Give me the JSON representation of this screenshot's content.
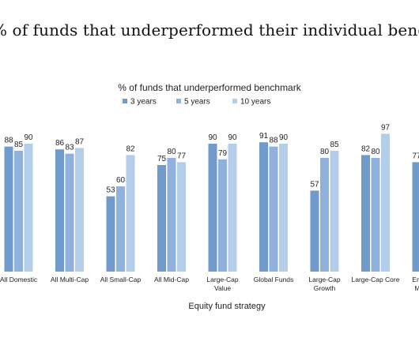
{
  "page": {
    "title": "% of funds that underperformed their individual benchmark, by strategy"
  },
  "chart_data": {
    "type": "bar",
    "title": "% of funds that underperformed benchmark",
    "xlabel": "Equity fund strategy",
    "ylabel": "",
    "ylim": [
      0,
      100
    ],
    "grid": false,
    "legend_position": "top-center",
    "categories": [
      [
        "All Domestic"
      ],
      [
        "All Multi-Cap"
      ],
      [
        "All Small-Cap"
      ],
      [
        "All Mid-Cap"
      ],
      [
        "Large-Cap",
        "Value"
      ],
      [
        "Global Funds"
      ],
      [
        "Large-Cap",
        "Growth"
      ],
      [
        "Large-Cap Core"
      ],
      [
        "Emerging",
        "Markets"
      ]
    ],
    "series": [
      {
        "name": "3 years",
        "color": "#6f9acb",
        "values": [
          88,
          86,
          53,
          75,
          90,
          91,
          57,
          82,
          77
        ]
      },
      {
        "name": "5 years",
        "color": "#8fb1db",
        "values": [
          85,
          83,
          60,
          80,
          79,
          88,
          80,
          80,
          0
        ]
      },
      {
        "name": "10 years",
        "color": "#b4cde9",
        "values": [
          90,
          87,
          82,
          77,
          90,
          90,
          85,
          97,
          0
        ]
      }
    ]
  }
}
